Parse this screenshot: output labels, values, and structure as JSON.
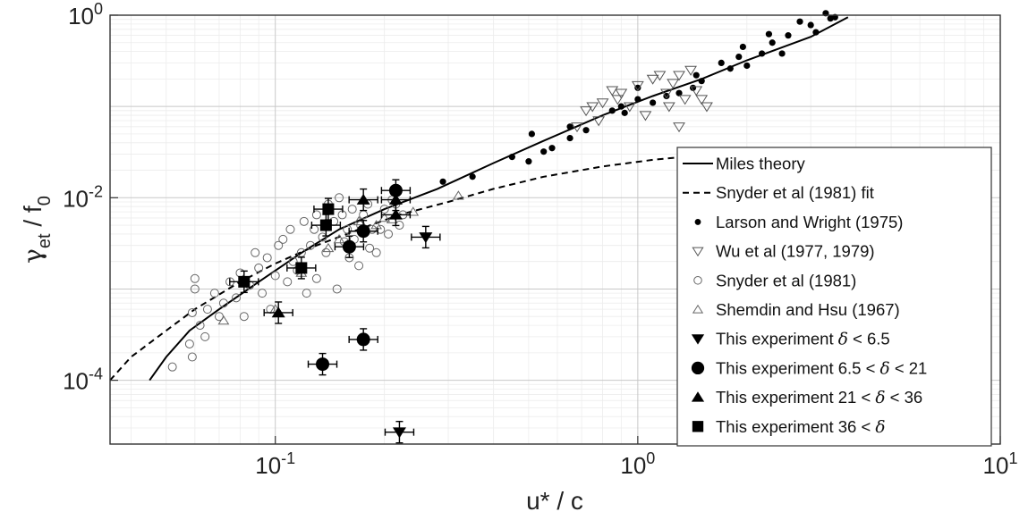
{
  "chart_data": {
    "type": "scatter",
    "xscale": "log",
    "yscale": "log",
    "xlim": [
      0.035,
      10
    ],
    "ylim": [
      2e-05,
      1
    ],
    "grid": true,
    "legend_position": "right",
    "xlabel": "u* / c",
    "ylabel": "γet / f0",
    "xticks": [
      {
        "value": 0.1,
        "base": "10",
        "exp": "-1"
      },
      {
        "value": 1,
        "base": "10",
        "exp": "0"
      },
      {
        "value": 10,
        "base": "10",
        "exp": "1"
      }
    ],
    "yticks": [
      {
        "value": 0.0001,
        "base": "10",
        "exp": "-4"
      },
      {
        "value": 0.01,
        "base": "10",
        "exp": "-2"
      },
      {
        "value": 1,
        "base": "10",
        "exp": "0"
      }
    ],
    "series": [
      {
        "name": "Miles theory",
        "kind": "line",
        "style": "solid",
        "color": "#000000",
        "points": [
          [
            0.045,
            0.0001
          ],
          [
            0.05,
            0.00018
          ],
          [
            0.058,
            0.00035
          ],
          [
            0.07,
            0.0006
          ],
          [
            0.09,
            0.0012
          ],
          [
            0.12,
            0.0026
          ],
          [
            0.15,
            0.0045
          ],
          [
            0.2,
            0.0075
          ],
          [
            0.28,
            0.0125
          ],
          [
            0.4,
            0.024
          ],
          [
            0.55,
            0.042
          ],
          [
            0.8,
            0.08
          ],
          [
            1.1,
            0.13
          ],
          [
            1.5,
            0.2
          ],
          [
            2,
            0.32
          ],
          [
            3,
            0.58
          ],
          [
            3.8,
            0.95
          ]
        ]
      },
      {
        "name": "Snyder et al (1981) fit",
        "kind": "line",
        "style": "dashed",
        "color": "#000000",
        "points": [
          [
            0.035,
            0.0001
          ],
          [
            0.04,
            0.00018
          ],
          [
            0.05,
            0.00035
          ],
          [
            0.06,
            0.0006
          ],
          [
            0.08,
            0.0012
          ],
          [
            0.1,
            0.0019
          ],
          [
            0.13,
            0.003
          ],
          [
            0.17,
            0.0045
          ],
          [
            0.22,
            0.0065
          ],
          [
            0.3,
            0.009
          ],
          [
            0.4,
            0.0125
          ],
          [
            0.55,
            0.017
          ],
          [
            0.8,
            0.022
          ],
          [
            1.1,
            0.026
          ],
          [
            1.6,
            0.03
          ]
        ]
      },
      {
        "name": "Larson and Wright (1975)",
        "kind": "marker",
        "marker": "dot",
        "points": [
          [
            0.29,
            0.015
          ],
          [
            0.35,
            0.017
          ],
          [
            0.45,
            0.028
          ],
          [
            0.5,
            0.025
          ],
          [
            0.51,
            0.05
          ],
          [
            0.55,
            0.032
          ],
          [
            0.58,
            0.035
          ],
          [
            0.65,
            0.045
          ],
          [
            0.65,
            0.06
          ],
          [
            0.72,
            0.055
          ],
          [
            0.85,
            0.09
          ],
          [
            0.9,
            0.1
          ],
          [
            0.92,
            0.085
          ],
          [
            1.0,
            0.12
          ],
          [
            1.0,
            0.16
          ],
          [
            1.1,
            0.11
          ],
          [
            1.2,
            0.13
          ],
          [
            1.3,
            0.14
          ],
          [
            1.42,
            0.16
          ],
          [
            1.45,
            0.22
          ],
          [
            1.5,
            0.19
          ],
          [
            1.7,
            0.3
          ],
          [
            1.8,
            0.26
          ],
          [
            1.9,
            0.35
          ],
          [
            1.95,
            0.45
          ],
          [
            2.0,
            0.28
          ],
          [
            2.2,
            0.38
          ],
          [
            2.3,
            0.62
          ],
          [
            2.35,
            0.5
          ],
          [
            2.5,
            0.38
          ],
          [
            2.6,
            0.6
          ],
          [
            2.8,
            0.85
          ],
          [
            3.0,
            0.78
          ],
          [
            3.1,
            0.65
          ],
          [
            3.3,
            1.05
          ],
          [
            3.4,
            0.92
          ],
          [
            3.5,
            0.95
          ]
        ]
      },
      {
        "name": "Wu et al (1977, 1979)",
        "kind": "marker",
        "marker": "triangle-down-open",
        "points": [
          [
            0.68,
            0.06
          ],
          [
            0.72,
            0.09
          ],
          [
            0.75,
            0.1
          ],
          [
            0.78,
            0.07
          ],
          [
            0.8,
            0.11
          ],
          [
            0.85,
            0.15
          ],
          [
            0.88,
            0.12
          ],
          [
            0.9,
            0.14
          ],
          [
            0.95,
            0.1
          ],
          [
            1.0,
            0.17
          ],
          [
            1.05,
            0.08
          ],
          [
            1.1,
            0.2
          ],
          [
            1.15,
            0.22
          ],
          [
            1.2,
            0.14
          ],
          [
            1.22,
            0.1
          ],
          [
            1.25,
            0.18
          ],
          [
            1.3,
            0.22
          ],
          [
            1.3,
            0.06
          ],
          [
            1.35,
            0.12
          ],
          [
            1.4,
            0.25
          ],
          [
            1.45,
            0.15
          ],
          [
            1.5,
            0.12
          ],
          [
            1.55,
            0.1
          ]
        ]
      },
      {
        "name": "Snyder et al (1981)",
        "kind": "marker",
        "marker": "circle-open",
        "points": [
          [
            0.052,
            0.00014
          ],
          [
            0.058,
            0.00025
          ],
          [
            0.059,
            0.00018
          ],
          [
            0.059,
            0.00055
          ],
          [
            0.06,
            0.001
          ],
          [
            0.06,
            0.0013
          ],
          [
            0.062,
            0.0004
          ],
          [
            0.064,
            0.0003
          ],
          [
            0.065,
            0.0006
          ],
          [
            0.068,
            0.0009
          ],
          [
            0.07,
            0.0005
          ],
          [
            0.072,
            0.0007
          ],
          [
            0.075,
            0.0012
          ],
          [
            0.078,
            0.0008
          ],
          [
            0.08,
            0.0015
          ],
          [
            0.082,
            0.0005
          ],
          [
            0.085,
            0.0011
          ],
          [
            0.088,
            0.0025
          ],
          [
            0.09,
            0.0017
          ],
          [
            0.092,
            0.0009
          ],
          [
            0.095,
            0.0022
          ],
          [
            0.097,
            0.0006
          ],
          [
            0.1,
            0.0014
          ],
          [
            0.102,
            0.003
          ],
          [
            0.105,
            0.0035
          ],
          [
            0.108,
            0.0012
          ],
          [
            0.11,
            0.0045
          ],
          [
            0.112,
            0.002
          ],
          [
            0.115,
            0.0016
          ],
          [
            0.118,
            0.0025
          ],
          [
            0.12,
            0.0055
          ],
          [
            0.122,
            0.0009
          ],
          [
            0.125,
            0.003
          ],
          [
            0.128,
            0.0045
          ],
          [
            0.13,
            0.0065
          ],
          [
            0.13,
            0.0013
          ],
          [
            0.135,
            0.0037
          ],
          [
            0.138,
            0.0025
          ],
          [
            0.14,
            0.0085
          ],
          [
            0.145,
            0.0055
          ],
          [
            0.148,
            0.001
          ],
          [
            0.15,
            0.01
          ],
          [
            0.153,
            0.0065
          ],
          [
            0.155,
            0.0033
          ],
          [
            0.158,
            0.0045
          ],
          [
            0.16,
            0.0022
          ],
          [
            0.163,
            0.0075
          ],
          [
            0.165,
            0.0035
          ],
          [
            0.17,
            0.0018
          ],
          [
            0.172,
            0.005
          ],
          [
            0.175,
            0.0065
          ],
          [
            0.18,
            0.0085
          ],
          [
            0.182,
            0.0028
          ],
          [
            0.185,
            0.0045
          ],
          [
            0.19,
            0.0025
          ],
          [
            0.195,
            0.0045
          ],
          [
            0.2,
            0.0075
          ],
          [
            0.205,
            0.004
          ],
          [
            0.21,
            0.0095
          ],
          [
            0.215,
            0.0085
          ],
          [
            0.22,
            0.005
          ],
          [
            0.225,
            0.0065
          ]
        ]
      },
      {
        "name": "Shemdin and Hsu (1967)",
        "kind": "marker",
        "marker": "triangle-up-open",
        "points": [
          [
            0.072,
            0.00045
          ],
          [
            0.1,
            0.0006
          ],
          [
            0.118,
            0.0015
          ],
          [
            0.14,
            0.0028
          ],
          [
            0.15,
            0.0035
          ],
          [
            0.17,
            0.0055
          ],
          [
            0.19,
            0.005
          ],
          [
            0.2,
            0.006
          ],
          [
            0.21,
            0.0058
          ],
          [
            0.24,
            0.007
          ],
          [
            0.32,
            0.0105
          ]
        ]
      },
      {
        "name": "This experiment δ < 6.5",
        "kind": "marker",
        "marker": "triangle-down-filled",
        "points": [
          [
            0.22,
            2.7e-05
          ],
          [
            0.26,
            0.0037
          ]
        ]
      },
      {
        "name": "This experiment 6.5 < δ < 21",
        "kind": "marker",
        "marker": "circle-filled",
        "points": [
          [
            0.135,
            0.00015
          ],
          [
            0.175,
            0.00028
          ],
          [
            0.16,
            0.0029
          ],
          [
            0.175,
            0.0043
          ],
          [
            0.215,
            0.012
          ]
        ]
      },
      {
        "name": "This experiment 21 < δ < 36",
        "kind": "marker",
        "marker": "triangle-up-filled",
        "points": [
          [
            0.102,
            0.00055
          ],
          [
            0.175,
            0.0095
          ],
          [
            0.215,
            0.0065
          ],
          [
            0.215,
            0.0095
          ]
        ]
      },
      {
        "name": "This experiment 36 < δ",
        "kind": "marker",
        "marker": "square-filled",
        "points": [
          [
            0.082,
            0.0012
          ],
          [
            0.118,
            0.0017
          ],
          [
            0.138,
            0.005
          ],
          [
            0.14,
            0.0075
          ]
        ]
      }
    ],
    "legend": [
      {
        "series": 0,
        "text": "Miles theory"
      },
      {
        "series": 1,
        "text": "Snyder et al (1981) fit"
      },
      {
        "series": 2,
        "text": "Larson and Wright (1975)"
      },
      {
        "series": 3,
        "text": "Wu et al (1977, 1979)"
      },
      {
        "series": 4,
        "text": "Snyder et al (1981)"
      },
      {
        "series": 5,
        "text": "Shemdin and Hsu (1967)"
      },
      {
        "series": 6,
        "pre": "This experiment ",
        "sym": "δ",
        "post": " < 6.5"
      },
      {
        "series": 7,
        "pre": "This experiment 6.5 < ",
        "sym": "δ",
        "post": " < 21"
      },
      {
        "series": 8,
        "pre": "This experiment 21 < ",
        "sym": "δ",
        "post": " < 36"
      },
      {
        "series": 9,
        "pre": "This experiment 36 < ",
        "sym": "δ",
        "post": ""
      }
    ]
  }
}
